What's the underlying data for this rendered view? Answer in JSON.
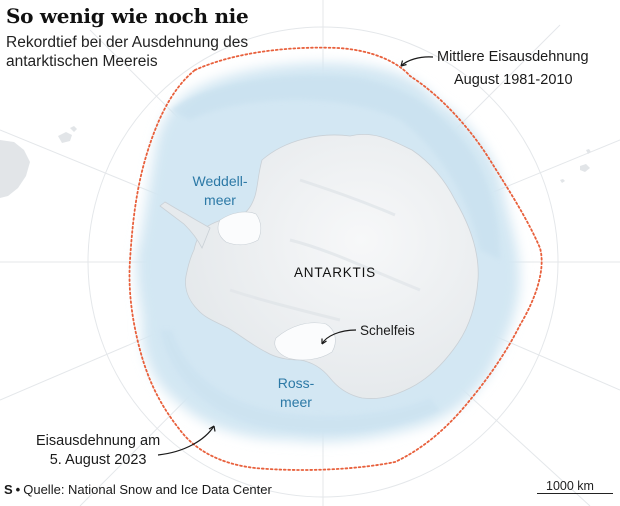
{
  "header": {
    "title": "So wenig wie noch nie",
    "subtitle": "Rekordtief bei der Ausdehnung des antarktischen Meereis"
  },
  "map": {
    "continent_label": "ANTARKTIS",
    "seas": {
      "weddell": [
        "Weddell-",
        "meer"
      ],
      "ross": [
        "Ross-",
        "meer"
      ]
    },
    "annotations": {
      "mean_extent": [
        "Mittlere Eisausdehnung",
        "August 1981-2010"
      ],
      "current_extent": [
        "Eisausdehnung am",
        "5. August 2023"
      ],
      "ice_shelf": "Schelfeis"
    },
    "colors": {
      "sea_ice": "#d3e7f3",
      "land": "#eef1f3",
      "mean_extent_line": "#e8603c",
      "sea_label": "#2c79a6",
      "graticule": "#e4e7ea"
    }
  },
  "footer": {
    "logo": "S",
    "source": "Quelle: National Snow and Ice Data Center"
  },
  "scale": {
    "label": "1000 km"
  }
}
